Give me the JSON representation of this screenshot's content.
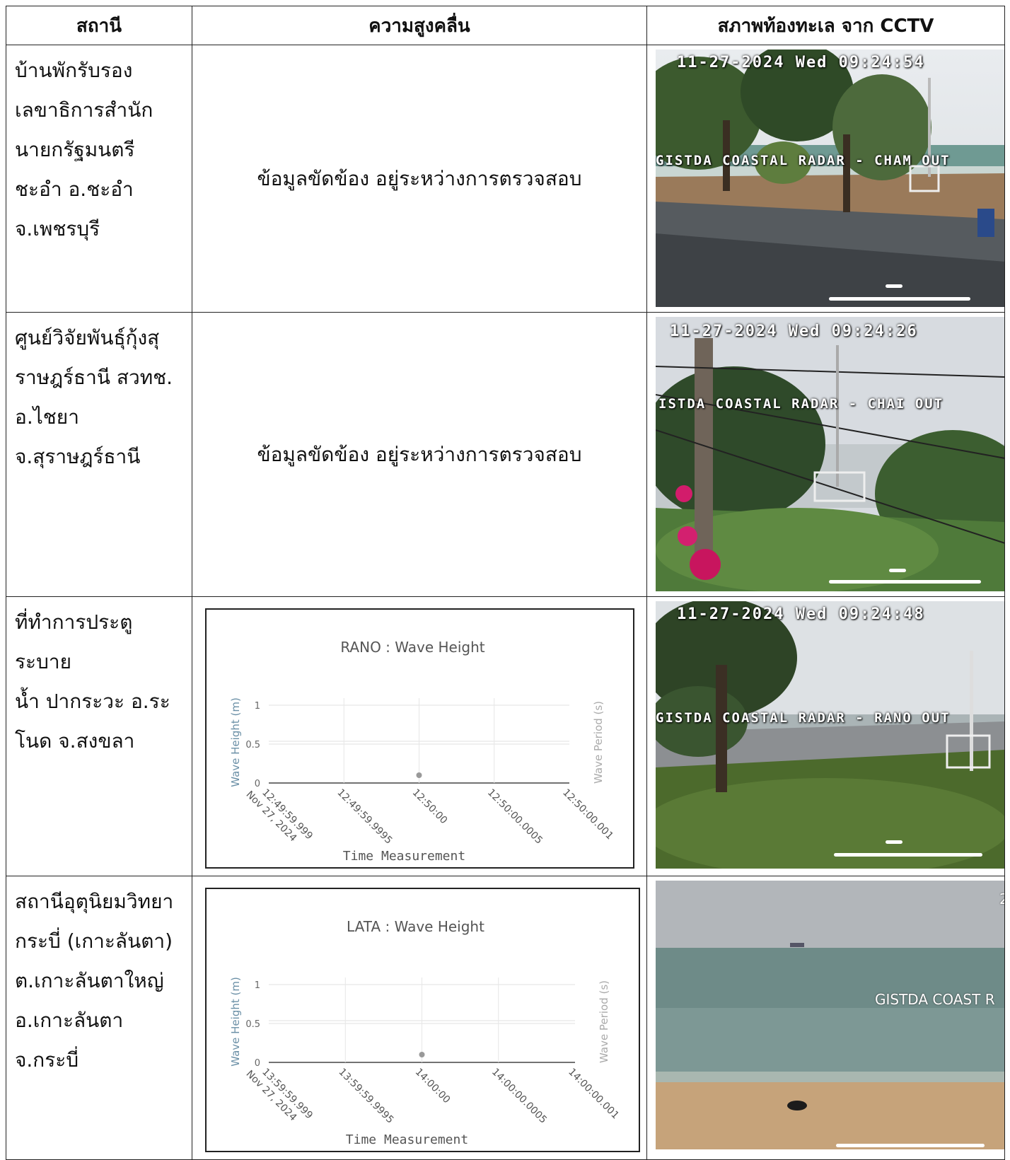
{
  "table": {
    "headers": [
      "สถานี",
      "ความสูงคลื่น",
      "สภาพท้องทะเล จาก CCTV"
    ],
    "rows": [
      {
        "station_lines": [
          "บ้านพักรับรอง",
          "เลขาธิการสำนัก",
          "นายกรัฐมนตรี",
          "ชะอำ อ.ชะอำ",
          "จ.เพชรบุรี"
        ],
        "wave_text": "ข้อมูลขัดข้อง อยู่ระหว่างการตรวจสอบ",
        "cam": {
          "timestamp": "11-27-2024 Wed 09:24:54",
          "overlay": "GISTDA COASTAL RADAR - CHAM OUT"
        }
      },
      {
        "station_lines": [
          "ศูนย์วิจัยพันธุ์กุ้งสุ",
          "ราษฎร์ธานี สวทช.",
          "อ.ไชยา",
          "จ.สุราษฎร์ธานี"
        ],
        "wave_text": "ข้อมูลขัดข้อง อยู่ระหว่างการตรวจสอบ",
        "cam": {
          "timestamp": "11-27-2024 Wed 09:24:26",
          "overlay": "ISTDA COASTAL RADAR - CHAI OUT"
        }
      },
      {
        "station_lines": [
          "ที่ทำการประตูระบาย",
          "น้ำ ปากระวะ อ.ระ",
          "โนด จ.สงขลา"
        ],
        "cam": {
          "timestamp": "11-27-2024 Wed 09:24:48",
          "overlay": "GISTDA COASTAL RADAR - RANO OUT"
        }
      },
      {
        "station_lines": [
          "สถานีอุตุนิยมวิทยา",
          "กระบี่ (เกาะลันตา)",
          "ต.เกาะลันตาใหญ่",
          "อ.เกาะลันตา",
          "จ.กระบี่"
        ],
        "cam": {
          "timestamp": "2",
          "overlay": "GISTDA COAST R"
        }
      }
    ]
  },
  "chart_data": [
    {
      "type": "scatter",
      "title": "RANO : Wave Height",
      "xlabel": "Time Measurement",
      "ylabel": "Wave Height (m)",
      "y2label": "Wave Period (s)",
      "ylim": [
        0,
        1
      ],
      "yticks": [
        "0",
        "0.5",
        "1"
      ],
      "xticks": [
        "12:49:59.999\nNov 27, 2024",
        "12:49:59.9995",
        "12:50:00",
        "12:50:00.0005",
        "12:50:00.001"
      ],
      "points": [
        {
          "x": "12:50:00",
          "y": 0.1
        }
      ],
      "color": "#999999"
    },
    {
      "type": "scatter",
      "title": "LATA : Wave Height",
      "xlabel": "Time Measurement",
      "ylabel": "Wave Height (m)",
      "y2label": "Wave Period (s)",
      "ylim": [
        0,
        1
      ],
      "yticks": [
        "0",
        "0.5",
        "1"
      ],
      "xticks": [
        "13:59:59.999\nNov 27, 2024",
        "13:59:59.9995",
        "14:00:00",
        "14:00:00.0005",
        "14:00:00.001"
      ],
      "points": [
        {
          "x": "14:00:00",
          "y": 0.1
        }
      ],
      "color": "#999999"
    }
  ]
}
